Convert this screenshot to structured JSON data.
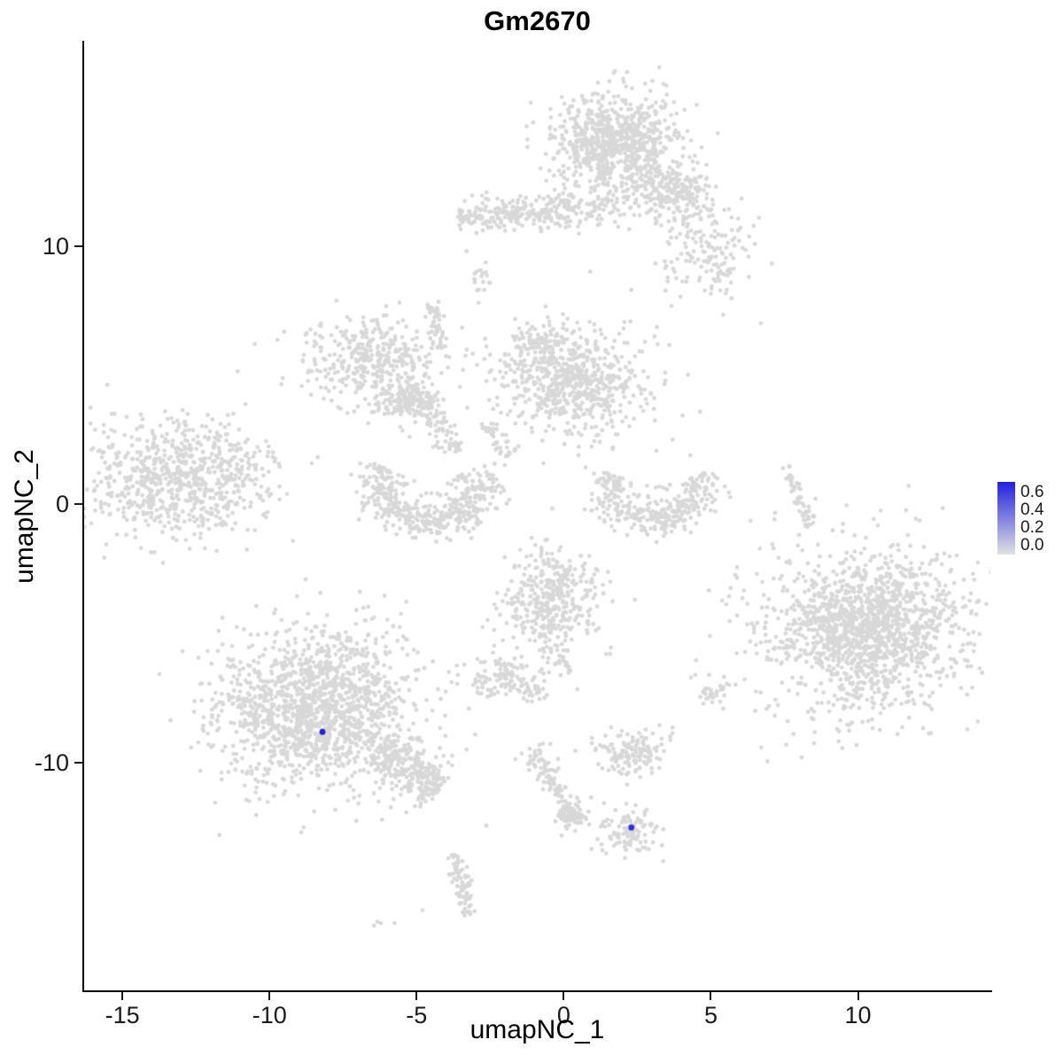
{
  "title": "Gm2670",
  "axes": {
    "x_label": "umapNC_1",
    "y_label": "umapNC_2",
    "x_ticks": [
      -15,
      -10,
      -5,
      0,
      5,
      10
    ],
    "y_ticks": [
      10,
      0,
      -10
    ],
    "xlim": [
      -16.3,
      14.5
    ],
    "ylim": [
      -18.8,
      17.9
    ]
  },
  "legend": {
    "ticks": [
      "0.6",
      "0.4",
      "0.2",
      "0.0"
    ],
    "min": 0.0,
    "max": 0.65,
    "low_color": "#E2E2E2",
    "high_color": "#2121DE"
  },
  "chart_data": {
    "type": "scatter",
    "title": "Gm2670",
    "xlabel": "umapNC_1",
    "ylabel": "umapNC_2",
    "xlim": [
      -16.3,
      14.5
    ],
    "ylim": [
      -18.8,
      17.9
    ],
    "grid": false,
    "legend_position": "right",
    "point_color_zero": "#D8D8D8",
    "point_radius": 2.4,
    "highlight_radius": 3.4,
    "clusters": [
      {
        "shape": "gauss",
        "x": 1.75,
        "y": 14.0,
        "sx": 1.05,
        "sy": 0.95,
        "n": 800
      },
      {
        "shape": "gauss",
        "x": 3.6,
        "y": 12.1,
        "sx": 0.75,
        "sy": 0.6,
        "n": 220
      },
      {
        "shape": "gauss",
        "x": 4.8,
        "y": 10.1,
        "sx": 0.9,
        "sy": 0.9,
        "n": 120
      },
      {
        "shape": "gauss",
        "x": 5.3,
        "y": 9.0,
        "sx": 0.5,
        "sy": 0.5,
        "n": 40
      },
      {
        "shape": "line",
        "x1": -3.6,
        "y1": 11.2,
        "x2": 0.6,
        "y2": 11.4,
        "w": 0.33,
        "n": 260
      },
      {
        "shape": "line",
        "x1": 0.7,
        "y1": 11.3,
        "x2": 2.1,
        "y2": 11.6,
        "w": 0.3,
        "n": 45
      },
      {
        "shape": "gauss",
        "x": -2.9,
        "y": 8.7,
        "sx": 0.22,
        "sy": 0.38,
        "n": 20
      },
      {
        "shape": "gauss",
        "x": -6.4,
        "y": 5.5,
        "sx": 1.15,
        "sy": 0.85,
        "n": 390
      },
      {
        "shape": "gauss",
        "x": -5.1,
        "y": 4.0,
        "sx": 0.45,
        "sy": 0.4,
        "n": 160
      },
      {
        "shape": "line",
        "x1": -4.6,
        "y1": 3.5,
        "x2": -3.7,
        "y2": 2.0,
        "w": 0.25,
        "n": 55
      },
      {
        "shape": "line",
        "x1": -4.5,
        "y1": 7.8,
        "x2": -4.2,
        "y2": 6.0,
        "w": 0.13,
        "n": 50
      },
      {
        "shape": "gauss",
        "x": 0.25,
        "y": 4.8,
        "sx": 1.3,
        "sy": 1.0,
        "n": 650
      },
      {
        "shape": "gauss",
        "x": -0.85,
        "y": 6.2,
        "sx": 0.5,
        "sy": 0.4,
        "n": 75
      },
      {
        "shape": "line",
        "x1": -2.6,
        "y1": 3.1,
        "x2": -1.8,
        "y2": 1.9,
        "w": 0.2,
        "n": 40
      },
      {
        "shape": "arc",
        "x": -4.6,
        "y": 0.7,
        "rx": 1.7,
        "ry": 1.4,
        "a1": 150,
        "a2": 390,
        "w": 0.42,
        "n": 430
      },
      {
        "shape": "gauss",
        "x": -13.2,
        "y": 1.0,
        "sx": 1.6,
        "sy": 1.15,
        "n": 750
      },
      {
        "shape": "gauss",
        "x": -11.1,
        "y": 1.6,
        "sx": 0.5,
        "sy": 0.4,
        "n": 30
      },
      {
        "shape": "arc",
        "x": 3.1,
        "y": 0.7,
        "rx": 1.5,
        "ry": 1.35,
        "a1": 160,
        "a2": 380,
        "w": 0.4,
        "n": 330
      },
      {
        "shape": "line",
        "x1": 7.55,
        "y1": 1.45,
        "x2": 8.4,
        "y2": -0.85,
        "w": 0.12,
        "n": 55
      },
      {
        "shape": "gauss",
        "x": 10.3,
        "y": -4.8,
        "sx": 1.45,
        "sy": 1.35,
        "n": 1000
      },
      {
        "shape": "gauss",
        "x": 10.3,
        "y": -4.7,
        "sx": 2.2,
        "sy": 2.0,
        "n": 520
      },
      {
        "shape": "gauss",
        "x": -0.3,
        "y": -3.7,
        "sx": 0.85,
        "sy": 1.0,
        "n": 380
      },
      {
        "shape": "line",
        "x1": -0.2,
        "y1": -5.5,
        "x2": 0.05,
        "y2": -6.6,
        "w": 0.15,
        "n": 22
      },
      {
        "shape": "gauss",
        "x": -2.2,
        "y": -6.7,
        "sx": 0.55,
        "sy": 0.38,
        "n": 110
      },
      {
        "shape": "gauss",
        "x": -0.95,
        "y": -7.1,
        "sx": 0.25,
        "sy": 0.3,
        "n": 28
      },
      {
        "shape": "gauss",
        "x": 5.0,
        "y": -7.2,
        "sx": 0.3,
        "sy": 0.3,
        "n": 34
      },
      {
        "shape": "gauss",
        "x": -8.4,
        "y": -7.9,
        "sx": 1.65,
        "sy": 1.55,
        "n": 1500
      },
      {
        "shape": "line",
        "x1": -6.3,
        "y1": -9.4,
        "x2": -4.2,
        "y2": -11.0,
        "w": 0.5,
        "n": 280
      },
      {
        "shape": "gauss",
        "x": 2.35,
        "y": -9.6,
        "sx": 0.6,
        "sy": 0.45,
        "n": 140
      },
      {
        "shape": "line",
        "x1": -1.15,
        "y1": -9.4,
        "x2": 0.5,
        "y2": -12.4,
        "w": 0.22,
        "n": 120
      },
      {
        "shape": "gauss",
        "x": 0.3,
        "y": -12.0,
        "sx": 0.3,
        "sy": 0.3,
        "n": 45
      },
      {
        "shape": "gauss",
        "x": 2.2,
        "y": -12.7,
        "sx": 0.55,
        "sy": 0.42,
        "n": 105
      },
      {
        "shape": "line",
        "x1": -3.65,
        "y1": -13.5,
        "x2": -3.3,
        "y2": -15.9,
        "w": 0.16,
        "n": 75
      },
      {
        "shape": "gauss",
        "x": -6.15,
        "y": -16.15,
        "sx": 0.18,
        "sy": 0.12,
        "n": 4
      }
    ],
    "singles": [
      [
        -10.5,
        6.2
      ],
      [
        6.7,
        7.0
      ],
      [
        2.3,
        8.3
      ],
      [
        0.9,
        9.0
      ],
      [
        -4.8,
        -15.7
      ],
      [
        0.5,
        1.9
      ],
      [
        3.7,
        2.5
      ],
      [
        4.3,
        1.9
      ],
      [
        -3.3,
        9.8
      ]
    ],
    "expressing_cells": [
      {
        "x": -8.2,
        "y": -8.8,
        "value": 0.65
      },
      {
        "x": 2.3,
        "y": -12.5,
        "value": 0.6
      }
    ]
  }
}
